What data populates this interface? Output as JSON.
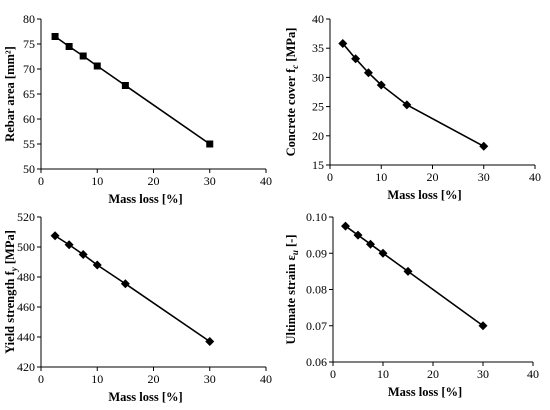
{
  "chart_data": [
    {
      "type": "line",
      "marker": "square",
      "x": [
        2.5,
        5,
        7.5,
        10,
        15,
        30
      ],
      "y": [
        76.5,
        74.5,
        72.6,
        70.6,
        66.7,
        55.0
      ],
      "xlim": [
        0,
        40
      ],
      "ylim": [
        50,
        80
      ],
      "xticks": [
        "0",
        "10",
        "20",
        "30",
        "40"
      ],
      "yticks": [
        "50",
        "55",
        "60",
        "65",
        "70",
        "75",
        "80"
      ],
      "xlabel": "Mass loss [%]",
      "ylabel": {
        "text": "Rebar area [mm²]",
        "sub": ""
      },
      "grid": false
    },
    {
      "type": "line",
      "marker": "diamond",
      "x": [
        2.5,
        5,
        7.5,
        10,
        15,
        30
      ],
      "y": [
        35.8,
        33.2,
        30.8,
        28.7,
        25.3,
        18.2
      ],
      "xlim": [
        0,
        40
      ],
      "ylim": [
        15,
        40
      ],
      "xticks": [
        "0",
        "10",
        "20",
        "30",
        "40"
      ],
      "yticks": [
        "15",
        "20",
        "25",
        "30",
        "35",
        "40"
      ],
      "xlabel": "Mass loss [%]",
      "ylabel": {
        "text": "Concrete cover f",
        "sub": "c",
        "after": " [MPa]"
      },
      "grid": false
    },
    {
      "type": "line",
      "marker": "diamond",
      "x": [
        2.5,
        5,
        7.5,
        10,
        15,
        30
      ],
      "y": [
        507.5,
        501.5,
        495,
        488,
        475.5,
        437
      ],
      "xlim": [
        0,
        40
      ],
      "ylim": [
        420,
        520
      ],
      "xticks": [
        "0",
        "10",
        "20",
        "30",
        "40"
      ],
      "yticks": [
        "420",
        "440",
        "460",
        "480",
        "500",
        "520"
      ],
      "xlabel": "Mass loss [%]",
      "ylabel": {
        "text": "Yield strength f",
        "sub": "y",
        "after": " [MPa]"
      },
      "grid": false
    },
    {
      "type": "line",
      "marker": "diamond",
      "x": [
        2.5,
        5,
        7.5,
        10,
        15,
        30
      ],
      "y": [
        0.0975,
        0.095,
        0.0925,
        0.09,
        0.085,
        0.07
      ],
      "xlim": [
        0,
        40
      ],
      "ylim": [
        0.06,
        0.1
      ],
      "xticks": [
        "0",
        "10",
        "20",
        "30",
        "40"
      ],
      "yticks": [
        "0.06",
        "0.07",
        "0.08",
        "0.09",
        "0.10"
      ],
      "xlabel": "Mass loss [%]",
      "ylabel": {
        "text": "Ultimate strain ε",
        "sub": "u",
        "after": " [-]"
      },
      "grid": false
    }
  ]
}
